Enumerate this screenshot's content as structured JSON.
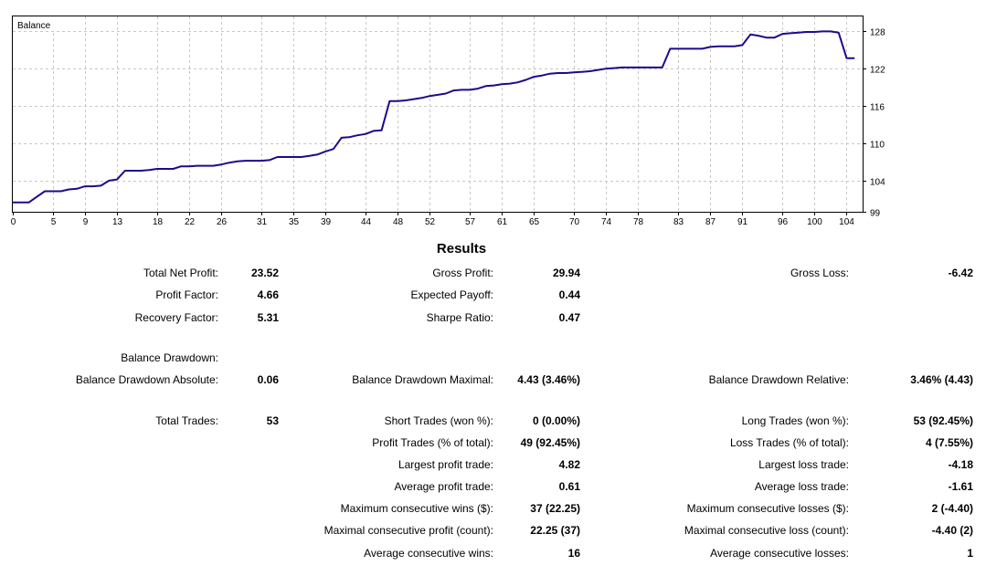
{
  "colors": {
    "line": "#1e0a8a",
    "grid": "#c8c8c8",
    "frame": "#000000"
  },
  "chart_data": {
    "type": "line",
    "title": "Balance",
    "xlabel": "",
    "ylabel": "",
    "x_ticks": [
      "0",
      "5",
      "9",
      "13",
      "18",
      "22",
      "26",
      "31",
      "35",
      "39",
      "44",
      "48",
      "52",
      "57",
      "61",
      "65",
      "70",
      "74",
      "78",
      "83",
      "87",
      "91",
      "96",
      "100",
      "104"
    ],
    "y_ticks": [
      "99",
      "104",
      "110",
      "116",
      "122",
      "128"
    ],
    "xlim": [
      0,
      106
    ],
    "ylim": [
      99,
      130.4
    ],
    "grid": true,
    "series": [
      {
        "x": [
          0,
          2,
          3,
          4,
          5,
          6,
          7,
          8,
          9,
          10,
          11,
          12,
          13,
          14,
          15,
          16,
          17,
          18,
          19,
          20,
          21,
          22,
          23,
          24,
          25,
          26,
          27,
          28,
          29,
          30,
          31,
          32,
          33,
          34,
          35,
          36,
          37,
          38,
          39,
          40,
          41,
          42,
          43,
          44,
          45,
          46,
          47,
          48,
          49,
          50,
          51,
          52,
          53,
          54,
          55,
          56,
          57,
          58,
          59,
          60,
          61,
          62,
          63,
          64,
          65,
          66,
          67,
          68,
          69,
          70,
          71,
          72,
          73,
          74,
          75,
          76,
          77,
          78,
          79,
          80,
          81,
          82,
          83,
          84,
          85,
          86,
          87,
          88,
          89,
          90,
          91,
          92,
          93,
          94,
          95,
          96,
          97,
          98,
          99,
          100,
          101,
          102,
          103,
          104,
          105
        ],
        "y": [
          100.5,
          100.5,
          101.4,
          102.3,
          102.3,
          102.3,
          102.6,
          102.7,
          103.1,
          103.1,
          103.2,
          104.0,
          104.2,
          105.6,
          105.6,
          105.6,
          105.7,
          105.9,
          105.9,
          105.9,
          106.3,
          106.3,
          106.4,
          106.4,
          106.4,
          106.6,
          106.9,
          107.1,
          107.2,
          107.2,
          107.2,
          107.3,
          107.8,
          107.8,
          107.8,
          107.8,
          108.0,
          108.2,
          108.7,
          109.1,
          110.9,
          111.0,
          111.3,
          111.5,
          112.0,
          112.1,
          116.8,
          116.8,
          116.9,
          117.1,
          117.3,
          117.6,
          117.8,
          118.0,
          118.5,
          118.6,
          118.6,
          118.8,
          119.2,
          119.3,
          119.5,
          119.6,
          119.8,
          120.2,
          120.7,
          120.9,
          121.2,
          121.3,
          121.3,
          121.4,
          121.5,
          121.6,
          121.8,
          122.0,
          122.1,
          122.2,
          122.2,
          122.2,
          122.2,
          122.2,
          122.2,
          125.2,
          125.2,
          125.2,
          125.2,
          125.2,
          125.5,
          125.6,
          125.6,
          125.6,
          125.8,
          127.5,
          127.3,
          127.0,
          127.0,
          127.6,
          127.7,
          127.8,
          127.9,
          127.9,
          128.0,
          128.0,
          127.8,
          123.7,
          123.7
        ]
      }
    ]
  },
  "results": {
    "title": "Results",
    "col1": [
      {
        "label": "Total Net Profit:",
        "value": "23.52"
      },
      {
        "label": "Profit Factor:",
        "value": "4.66"
      },
      {
        "label": "Recovery Factor:",
        "value": "5.31"
      },
      {
        "label": "Balance Drawdown:",
        "value": ""
      },
      {
        "label": "Balance Drawdown Absolute:",
        "value": "0.06"
      },
      {
        "label": "Total Trades:",
        "value": "53"
      }
    ],
    "col2": [
      {
        "label": "Gross Profit:",
        "value": "29.94"
      },
      {
        "label": "Expected Payoff:",
        "value": "0.44"
      },
      {
        "label": "Sharpe Ratio:",
        "value": "0.47"
      },
      {
        "label": "Balance Drawdown Maximal:",
        "value": "4.43 (3.46%)"
      },
      {
        "label": "Short Trades (won %):",
        "value": "0 (0.00%)"
      },
      {
        "label": "Profit Trades (% of total):",
        "value": "49 (92.45%)"
      },
      {
        "label": "Largest profit trade:",
        "value": "4.82"
      },
      {
        "label": "Average profit trade:",
        "value": "0.61"
      },
      {
        "label": "Maximum consecutive wins ($):",
        "value": "37 (22.25)"
      },
      {
        "label": "Maximal consecutive profit (count):",
        "value": "22.25 (37)"
      },
      {
        "label": "Average consecutive wins:",
        "value": "16"
      }
    ],
    "col3": [
      {
        "label": "Gross Loss:",
        "value": "-6.42"
      },
      {
        "label": "Balance Drawdown Relative:",
        "value": "3.46% (4.43)"
      },
      {
        "label": "Long Trades (won %):",
        "value": "53 (92.45%)"
      },
      {
        "label": "Loss Trades (% of total):",
        "value": "4 (7.55%)"
      },
      {
        "label": "Largest loss trade:",
        "value": "-4.18"
      },
      {
        "label": "Average loss trade:",
        "value": "-1.61"
      },
      {
        "label": "Maximum consecutive losses ($):",
        "value": "2 (-4.40)"
      },
      {
        "label": "Maximal consecutive loss (count):",
        "value": "-4.40 (2)"
      },
      {
        "label": "Average consecutive losses:",
        "value": "1"
      }
    ]
  }
}
